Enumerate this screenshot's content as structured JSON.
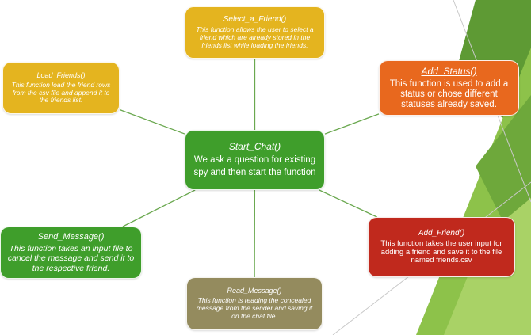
{
  "diagram": {
    "center": {
      "id": "start",
      "title": "Start_Chat()",
      "desc": "We ask a question for existing spy and then start the function"
    },
    "nodes": [
      {
        "id": "select",
        "title": "Select_a_Friend()",
        "desc": "This function allows the user to select a friend which are already stored in the friends list while loading the friends."
      },
      {
        "id": "load",
        "title": "Load_Friends()",
        "desc": "This function load the friend rows from the csv file and append it to the friends list."
      },
      {
        "id": "status",
        "title": "Add_Status()",
        "desc": "This function is used to add a status or chose different statuses already saved."
      },
      {
        "id": "send",
        "title": "Send_Message()",
        "desc": "This function takes an input file to cancel the message and send it to the respective friend."
      },
      {
        "id": "add",
        "title": "Add_Friend()",
        "desc": "This function takes the user input for adding a friend and save it to the file named friends.csv"
      },
      {
        "id": "read",
        "title": "Read_Message()",
        "desc": "This function is reading the concealed message from the sender and saving it on the chat file."
      }
    ],
    "edges": [
      {
        "from": "start",
        "to": "select"
      },
      {
        "from": "start",
        "to": "load"
      },
      {
        "from": "start",
        "to": "status"
      },
      {
        "from": "start",
        "to": "send"
      },
      {
        "from": "start",
        "to": "add"
      },
      {
        "from": "start",
        "to": "read"
      }
    ],
    "colors": {
      "yellow": "#e4b41f",
      "orange": "#e8681e",
      "green": "#3f9e2b",
      "red": "#c0291d",
      "olive": "#948b5e",
      "connector": "#6aa84f"
    }
  }
}
